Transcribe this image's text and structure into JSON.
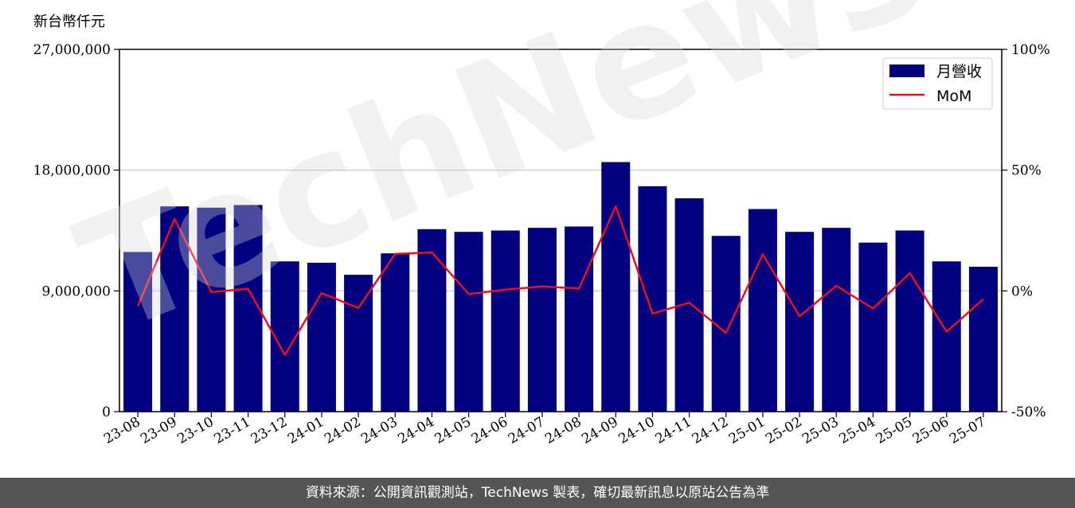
{
  "chart_data": {
    "type": "bar",
    "y_unit_label": "新台幣仟元",
    "categories": [
      "23-08",
      "23-09",
      "23-10",
      "23-11",
      "23-12",
      "24-01",
      "24-02",
      "24-03",
      "24-04",
      "24-05",
      "24-06",
      "24-07",
      "24-08",
      "24-09",
      "24-10",
      "24-11",
      "24-12",
      "25-01",
      "25-02",
      "25-03",
      "25-04",
      "25-05",
      "25-06",
      "25-07"
    ],
    "series": [
      {
        "name": "月營收",
        "type": "bar",
        "axis": "left",
        "color": "#000080",
        "values": [
          11900000,
          15300000,
          15200000,
          15400000,
          11200000,
          11100000,
          10200000,
          11800000,
          13600000,
          13400000,
          13500000,
          13700000,
          13800000,
          18600000,
          16800000,
          15900000,
          13100000,
          15100000,
          13400000,
          13700000,
          12600000,
          13500000,
          11200000,
          10800000
        ]
      },
      {
        "name": "MoM",
        "type": "line",
        "axis": "right",
        "color": "#e8101a",
        "values": [
          -6.3,
          29.8,
          -0.5,
          0.9,
          -26.5,
          -0.9,
          -7.1,
          15.3,
          15.9,
          -1.3,
          0.5,
          1.8,
          1.0,
          35.0,
          -9.4,
          -4.9,
          -17.4,
          15.2,
          -10.5,
          2.1,
          -7.3,
          7.4,
          -16.9,
          -3.4
        ]
      }
    ],
    "y_left": {
      "min": 0,
      "max": 27000000,
      "ticks": [
        "0",
        "9,000,000",
        "18,000,000",
        "27,000,000"
      ],
      "tick_values": [
        0,
        9000000,
        18000000,
        27000000
      ]
    },
    "y_right": {
      "min": -50,
      "max": 100,
      "ticks": [
        "-50%",
        "0%",
        "50%",
        "100%"
      ],
      "tick_values": [
        -50,
        0,
        50,
        100
      ]
    },
    "grid": "horizontal",
    "legend": "top-right"
  },
  "watermark": {
    "text": "TechNews"
  },
  "footer": {
    "text": "資料來源：公開資訊觀測站，TechNews 製表，確切最新訊息以原站公告為準"
  }
}
